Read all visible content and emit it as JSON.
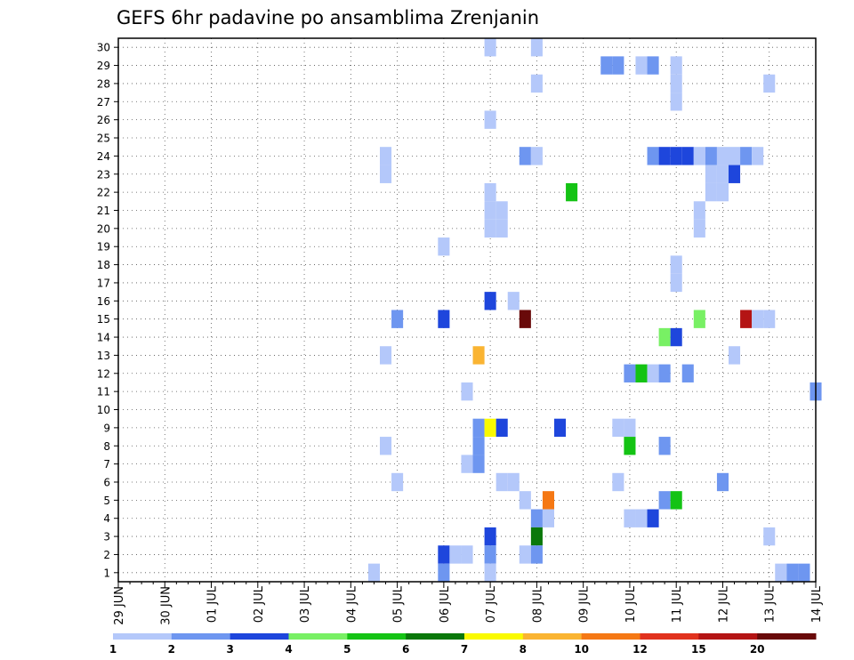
{
  "chart_data": {
    "type": "heatmap",
    "title": "GEFS 6hr padavine po ansamblima Zrenjanin",
    "x_tick_labels": [
      "29 JUN",
      "30 JUN",
      "01 JUL",
      "02 JUL",
      "03 JUL",
      "04 JUL",
      "05 JUL",
      "06 JUL",
      "07 JUL",
      "08 JUL",
      "09 JUL",
      "10 JUL",
      "11 JUL",
      "12 JUL",
      "13 JUL",
      "14 JUL"
    ],
    "y_tick_labels": [
      "1",
      "2",
      "3",
      "4",
      "5",
      "6",
      "7",
      "8",
      "9",
      "10",
      "11",
      "12",
      "13",
      "14",
      "15",
      "16",
      "17",
      "18",
      "19",
      "20",
      "21",
      "22",
      "23",
      "24",
      "25",
      "26",
      "27",
      "28",
      "29",
      "30"
    ],
    "x_unit": "6-hour steps from 29 JUN 00 UTC",
    "xlim": [
      0,
      60
    ],
    "ylim": [
      0.5,
      30.5
    ],
    "grid": true,
    "legend_position": "bottom",
    "color_levels": [
      "1",
      "2",
      "3",
      "4",
      "5",
      "6",
      "7",
      "8",
      "10",
      "12",
      "15",
      "20"
    ],
    "color_scale": [
      "#b4c8fa",
      "#6e96f0",
      "#1e46dc",
      "#78f064",
      "#14c314",
      "#0a780a",
      "#fafa00",
      "#fab432",
      "#f57814",
      "#e1321e",
      "#b41414",
      "#690a0a"
    ],
    "cells": [
      {
        "t": 32,
        "m": 30,
        "c": 0
      },
      {
        "t": 36,
        "m": 30,
        "c": 0
      },
      {
        "t": 42,
        "m": 29,
        "c": 1
      },
      {
        "t": 43,
        "m": 29,
        "c": 1
      },
      {
        "t": 45,
        "m": 29,
        "c": 0
      },
      {
        "t": 46,
        "m": 29,
        "c": 1
      },
      {
        "t": 48,
        "m": 29,
        "c": 0
      },
      {
        "t": 36,
        "m": 28,
        "c": 0
      },
      {
        "t": 48,
        "m": 28,
        "c": 0
      },
      {
        "t": 56,
        "m": 28,
        "c": 0
      },
      {
        "t": 48,
        "m": 27,
        "c": 0
      },
      {
        "t": 32,
        "m": 26,
        "c": 0
      },
      {
        "t": 23,
        "m": 24,
        "c": 0
      },
      {
        "t": 35,
        "m": 24,
        "c": 1
      },
      {
        "t": 36,
        "m": 24,
        "c": 0
      },
      {
        "t": 46,
        "m": 24,
        "c": 1
      },
      {
        "t": 47,
        "m": 24,
        "c": 2
      },
      {
        "t": 48,
        "m": 24,
        "c": 2
      },
      {
        "t": 49,
        "m": 24,
        "c": 2
      },
      {
        "t": 50,
        "m": 24,
        "c": 0
      },
      {
        "t": 51,
        "m": 24,
        "c": 1
      },
      {
        "t": 52,
        "m": 24,
        "c": 0
      },
      {
        "t": 53,
        "m": 24,
        "c": 0
      },
      {
        "t": 54,
        "m": 24,
        "c": 1
      },
      {
        "t": 55,
        "m": 24,
        "c": 0
      },
      {
        "t": 23,
        "m": 23,
        "c": 0
      },
      {
        "t": 51,
        "m": 23,
        "c": 0
      },
      {
        "t": 52,
        "m": 23,
        "c": 0
      },
      {
        "t": 53,
        "m": 23,
        "c": 2
      },
      {
        "t": 32,
        "m": 22,
        "c": 0
      },
      {
        "t": 39,
        "m": 22,
        "c": 4
      },
      {
        "t": 51,
        "m": 22,
        "c": 0
      },
      {
        "t": 52,
        "m": 22,
        "c": 0
      },
      {
        "t": 32,
        "m": 21,
        "c": 0
      },
      {
        "t": 33,
        "m": 21,
        "c": 0
      },
      {
        "t": 50,
        "m": 21,
        "c": 0
      },
      {
        "t": 32,
        "m": 20,
        "c": 0
      },
      {
        "t": 33,
        "m": 20,
        "c": 0
      },
      {
        "t": 50,
        "m": 20,
        "c": 0
      },
      {
        "t": 28,
        "m": 19,
        "c": 0
      },
      {
        "t": 48,
        "m": 18,
        "c": 0
      },
      {
        "t": 48,
        "m": 17,
        "c": 0
      },
      {
        "t": 32,
        "m": 16,
        "c": 2
      },
      {
        "t": 34,
        "m": 16,
        "c": 0
      },
      {
        "t": 24,
        "m": 15,
        "c": 1
      },
      {
        "t": 28,
        "m": 15,
        "c": 2
      },
      {
        "t": 35,
        "m": 15,
        "c": 11
      },
      {
        "t": 50,
        "m": 15,
        "c": 3
      },
      {
        "t": 54,
        "m": 15,
        "c": 10
      },
      {
        "t": 55,
        "m": 15,
        "c": 0
      },
      {
        "t": 56,
        "m": 15,
        "c": 0
      },
      {
        "t": 47,
        "m": 14,
        "c": 3
      },
      {
        "t": 48,
        "m": 14,
        "c": 2
      },
      {
        "t": 23,
        "m": 13,
        "c": 0
      },
      {
        "t": 31,
        "m": 13,
        "c": 7
      },
      {
        "t": 53,
        "m": 13,
        "c": 0
      },
      {
        "t": 44,
        "m": 12,
        "c": 1
      },
      {
        "t": 45,
        "m": 12,
        "c": 4
      },
      {
        "t": 46,
        "m": 12,
        "c": 0
      },
      {
        "t": 47,
        "m": 12,
        "c": 1
      },
      {
        "t": 49,
        "m": 12,
        "c": 1
      },
      {
        "t": 30,
        "m": 11,
        "c": 0
      },
      {
        "t": 60,
        "m": 11,
        "c": 1
      },
      {
        "t": 31,
        "m": 9,
        "c": 1
      },
      {
        "t": 32,
        "m": 9,
        "c": 6
      },
      {
        "t": 33,
        "m": 9,
        "c": 2
      },
      {
        "t": 38,
        "m": 9,
        "c": 2
      },
      {
        "t": 43,
        "m": 9,
        "c": 0
      },
      {
        "t": 44,
        "m": 9,
        "c": 0
      },
      {
        "t": 23,
        "m": 8,
        "c": 0
      },
      {
        "t": 31,
        "m": 8,
        "c": 1
      },
      {
        "t": 44,
        "m": 8,
        "c": 4
      },
      {
        "t": 47,
        "m": 8,
        "c": 1
      },
      {
        "t": 30,
        "m": 7,
        "c": 0
      },
      {
        "t": 31,
        "m": 7,
        "c": 1
      },
      {
        "t": 24,
        "m": 6,
        "c": 0
      },
      {
        "t": 33,
        "m": 6,
        "c": 0
      },
      {
        "t": 34,
        "m": 6,
        "c": 0
      },
      {
        "t": 43,
        "m": 6,
        "c": 0
      },
      {
        "t": 52,
        "m": 6,
        "c": 1
      },
      {
        "t": 35,
        "m": 5,
        "c": 0
      },
      {
        "t": 37,
        "m": 5,
        "c": 8
      },
      {
        "t": 47,
        "m": 5,
        "c": 1
      },
      {
        "t": 48,
        "m": 5,
        "c": 4
      },
      {
        "t": 36,
        "m": 4,
        "c": 1
      },
      {
        "t": 37,
        "m": 4,
        "c": 0
      },
      {
        "t": 44,
        "m": 4,
        "c": 0
      },
      {
        "t": 45,
        "m": 4,
        "c": 0
      },
      {
        "t": 46,
        "m": 4,
        "c": 2
      },
      {
        "t": 32,
        "m": 3,
        "c": 2
      },
      {
        "t": 36,
        "m": 3,
        "c": 5
      },
      {
        "t": 56,
        "m": 3,
        "c": 0
      },
      {
        "t": 28,
        "m": 2,
        "c": 2
      },
      {
        "t": 29,
        "m": 2,
        "c": 0
      },
      {
        "t": 30,
        "m": 2,
        "c": 0
      },
      {
        "t": 32,
        "m": 2,
        "c": 1
      },
      {
        "t": 35,
        "m": 2,
        "c": 0
      },
      {
        "t": 36,
        "m": 2,
        "c": 1
      },
      {
        "t": 22,
        "m": 1,
        "c": 0
      },
      {
        "t": 28,
        "m": 1,
        "c": 1
      },
      {
        "t": 32,
        "m": 1,
        "c": 0
      },
      {
        "t": 57,
        "m": 1,
        "c": 0
      },
      {
        "t": 58,
        "m": 1,
        "c": 1
      },
      {
        "t": 59,
        "m": 1,
        "c": 1
      }
    ]
  }
}
